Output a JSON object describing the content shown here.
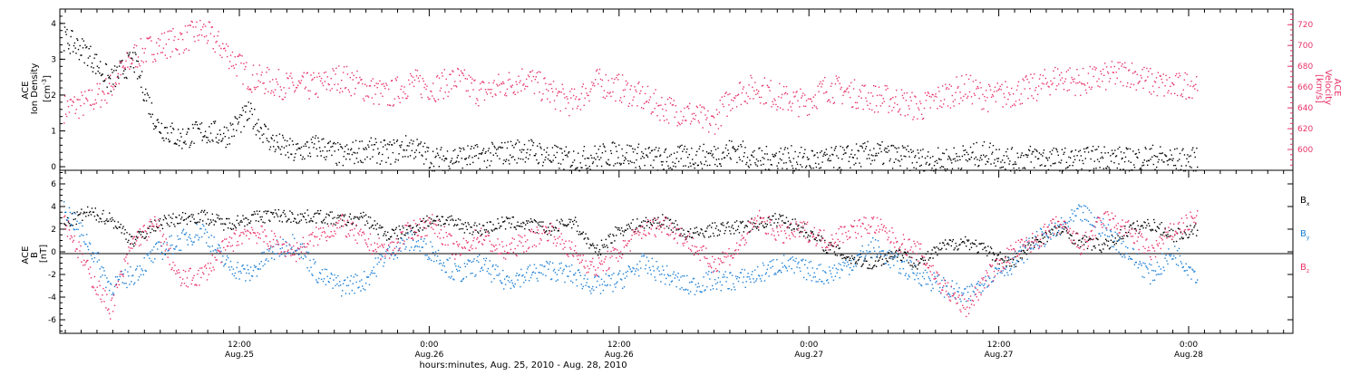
{
  "colors": {
    "black": "#000000",
    "pink": "#e8336a",
    "blue": "#1c7fd6"
  },
  "chart_data": [
    {
      "type": "scatter",
      "panel": "top",
      "ylabel_left": [
        "ACE",
        "Ion Density",
        "[cm",
        "-3",
        "]"
      ],
      "ylabel_right": [
        "ACE",
        "Velocity",
        "[km/s]"
      ],
      "ylim_left": [
        -0.1,
        4.4
      ],
      "ylim_right": [
        580,
        735
      ],
      "yticks_left": [
        "0",
        "1",
        "2",
        "3",
        "4"
      ],
      "yticks_right": [
        "600",
        "620",
        "640",
        "660",
        "680",
        "700",
        "720"
      ],
      "series": [
        {
          "axis": "left",
          "color": "#000000",
          "values": [
            3.6,
            3.2,
            2.4,
            3.0,
            1.2,
            0.8,
            1.0,
            0.9,
            1.5,
            0.7,
            0.4,
            0.6,
            0.3,
            0.5,
            0.4,
            0.6,
            0.2,
            0.3,
            0.3,
            0.4,
            0.5,
            0.3,
            0.2,
            0.3,
            0.4,
            0.3,
            0.2,
            0.3,
            0.3,
            0.5,
            0.2,
            0.3,
            0.2,
            0.2,
            0.3,
            0.4,
            0.3,
            0.2,
            0.2,
            0.3,
            0.4,
            0.2,
            0.3,
            0.2,
            0.2,
            0.3,
            0.2,
            0.3,
            0.2,
            0.2
          ]
        },
        {
          "axis": "right",
          "color": "#e8336a",
          "values": [
            640,
            645,
            660,
            690,
            700,
            705,
            715,
            695,
            670,
            665,
            660,
            662,
            670,
            660,
            652,
            665,
            660,
            668,
            655,
            662,
            670,
            655,
            645,
            665,
            660,
            650,
            640,
            635,
            625,
            655,
            660,
            650,
            645,
            660,
            655,
            650,
            648,
            640,
            652,
            660,
            650,
            655,
            660,
            670,
            665,
            670,
            675,
            665,
            660,
            665
          ]
        }
      ]
    },
    {
      "type": "scatter",
      "panel": "bottom",
      "ylabel": [
        "ACE",
        "B",
        "[nT]"
      ],
      "ylim": [
        -7.2,
        7.2
      ],
      "yticks": [
        "-6",
        "-4",
        "-2",
        "0",
        "2",
        "4",
        "6"
      ],
      "legend": [
        "B",
        "B",
        "B"
      ],
      "legend_subscripts": [
        "x",
        "y",
        "z"
      ],
      "legend_placement": "right",
      "x_ticks": [
        {
          "time": "12:00",
          "date": "Aug.25"
        },
        {
          "time": "0:00",
          "date": "Aug.26"
        },
        {
          "time": "12:00",
          "date": "Aug.26"
        },
        {
          "time": "0:00",
          "date": "Aug.27"
        },
        {
          "time": "12:00",
          "date": "Aug.27"
        },
        {
          "time": "0:00",
          "date": "Aug.28"
        }
      ],
      "xlabel": "hours:minutes, Aug. 25, 2010 - Aug. 28, 2010",
      "series": [
        {
          "name": "Bx",
          "color": "#000000",
          "values": [
            2.5,
            3.5,
            3.0,
            1.0,
            2.5,
            3.0,
            3.2,
            2.5,
            3.0,
            3.3,
            3.1,
            3.2,
            2.8,
            3.0,
            1.5,
            2.0,
            3.0,
            2.5,
            2.0,
            2.6,
            2.5,
            2.0,
            2.8,
            0.0,
            2.0,
            2.5,
            2.8,
            1.5,
            2.0,
            2.2,
            2.5,
            3.0,
            2.0,
            0.5,
            -0.5,
            -1.0,
            0.0,
            -1.0,
            0.5,
            1.0,
            0.0,
            -1.0,
            1.0,
            2.0,
            1.0,
            0.5,
            2.0,
            2.5,
            1.5,
            2.0
          ]
        },
        {
          "name": "By",
          "color": "#1c7fd6",
          "values": [
            4.0,
            1.0,
            -3.0,
            -2.0,
            0.0,
            1.0,
            2.0,
            -1.0,
            -2.0,
            0.0,
            1.0,
            -2.0,
            -3.0,
            -2.5,
            0.0,
            1.0,
            0.0,
            -2.0,
            -1.0,
            -2.5,
            -2.0,
            -1.5,
            -2.0,
            -3.0,
            -2.5,
            -1.0,
            -2.0,
            -3.0,
            -2.5,
            -2.5,
            -2.0,
            -1.0,
            -1.5,
            -2.0,
            -1.0,
            0.5,
            -1.0,
            -2.0,
            -3.0,
            -4.0,
            -2.0,
            -1.0,
            1.0,
            2.0,
            3.5,
            2.0,
            0.0,
            -2.0,
            0.0,
            -2.0
          ]
        },
        {
          "name": "Bz",
          "color": "#e8336a",
          "values": [
            3.0,
            -1.5,
            -5.0,
            1.0,
            2.5,
            -2.5,
            -2.0,
            0.5,
            2.0,
            1.0,
            0.0,
            1.5,
            2.5,
            1.0,
            0.0,
            2.0,
            2.5,
            0.0,
            1.5,
            0.0,
            1.0,
            2.0,
            0.0,
            -1.5,
            0.0,
            2.0,
            2.5,
            1.0,
            -1.0,
            0.0,
            3.0,
            1.5,
            2.0,
            1.0,
            2.0,
            2.5,
            1.0,
            0.0,
            -3.0,
            -5.0,
            -2.0,
            0.0,
            1.0,
            2.5,
            0.5,
            3.0,
            2.0,
            0.0,
            2.0,
            3.0
          ]
        }
      ]
    }
  ]
}
